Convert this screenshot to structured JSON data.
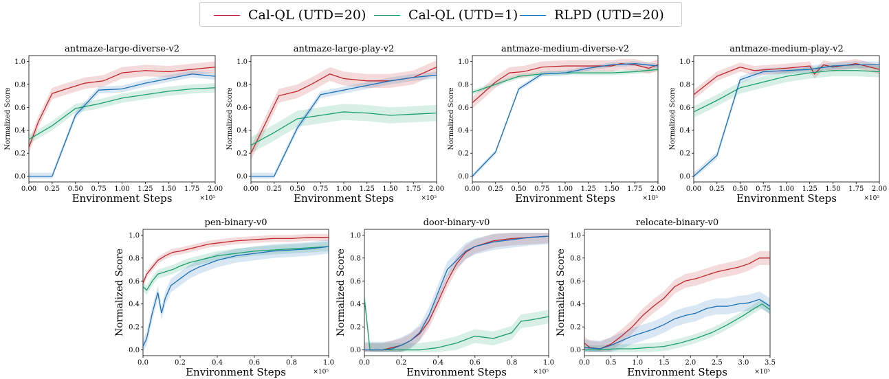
{
  "legend": {
    "items": [
      {
        "label": "Cal-QL (UTD=20)",
        "color": "#c0262c"
      },
      {
        "label": "Cal-QL (UTD=1)",
        "color": "#1a9e6a"
      },
      {
        "label": "RLPD (UTD=20)",
        "color": "#1a6fb5"
      }
    ]
  },
  "chart_data": [
    {
      "type": "line",
      "title": "antmaze-large-diverse-v2",
      "xlabel": "Environment Steps",
      "ylabel": "Normalized Score",
      "x_multiplier": "×10⁵",
      "xlim": [
        0,
        2.0
      ],
      "ylim": [
        0,
        1.0
      ],
      "xticks": [
        "0.00",
        "0.25",
        "0.50",
        "0.75",
        "1.00",
        "1.25",
        "1.50",
        "1.75",
        "2.00"
      ],
      "yticks": [
        "0.0",
        "0.2",
        "0.4",
        "0.6",
        "0.8",
        "1.0"
      ],
      "series": [
        {
          "name": "Cal-QL (UTD=20)",
          "x": [
            0,
            0.1,
            0.25,
            0.4,
            0.6,
            0.8,
            1.0,
            1.25,
            1.5,
            1.75,
            2.0
          ],
          "y": [
            0.25,
            0.47,
            0.72,
            0.76,
            0.81,
            0.83,
            0.9,
            0.92,
            0.91,
            0.93,
            0.95
          ],
          "spread": 0.05
        },
        {
          "name": "Cal-QL (UTD=1)",
          "x": [
            0,
            0.25,
            0.5,
            0.75,
            1.0,
            1.25,
            1.5,
            1.75,
            2.0
          ],
          "y": [
            0.32,
            0.44,
            0.59,
            0.63,
            0.68,
            0.71,
            0.74,
            0.76,
            0.77
          ],
          "spread": 0.04
        },
        {
          "name": "RLPD (UTD=20)",
          "x": [
            0,
            0.25,
            0.5,
            0.75,
            1.0,
            1.25,
            1.5,
            1.75,
            2.0
          ],
          "y": [
            0,
            0,
            0.53,
            0.75,
            0.76,
            0.81,
            0.85,
            0.89,
            0.87
          ],
          "spread": 0.03
        }
      ]
    },
    {
      "type": "line",
      "title": "antmaze-large-play-v2",
      "xlabel": "",
      "ylabel": "",
      "x_multiplier": "×10⁵",
      "xlim": [
        0,
        2.0
      ],
      "ylim": [
        0,
        1.0
      ],
      "xticks": [
        "0.00",
        "0.25",
        "0.50",
        "0.75",
        "1.00",
        "1.25",
        "1.50",
        "1.75",
        "2.00"
      ],
      "yticks": [
        "0.0",
        "0.2",
        "0.4",
        "0.6",
        "0.8",
        "1.0"
      ],
      "series": [
        {
          "name": "Cal-QL (UTD=20)",
          "x": [
            0,
            0.15,
            0.3,
            0.5,
            0.65,
            0.85,
            1.0,
            1.25,
            1.5,
            1.75,
            2.0
          ],
          "y": [
            0.2,
            0.45,
            0.7,
            0.74,
            0.8,
            0.89,
            0.85,
            0.83,
            0.83,
            0.86,
            0.95
          ],
          "spread": 0.06
        },
        {
          "name": "Cal-QL (UTD=1)",
          "x": [
            0,
            0.25,
            0.5,
            0.75,
            1.0,
            1.25,
            1.5,
            1.75,
            2.0
          ],
          "y": [
            0.27,
            0.38,
            0.5,
            0.53,
            0.56,
            0.55,
            0.53,
            0.54,
            0.55
          ],
          "spread": 0.07
        },
        {
          "name": "RLPD (UTD=20)",
          "x": [
            0,
            0.25,
            0.5,
            0.75,
            1.0,
            1.25,
            1.5,
            1.75,
            2.0
          ],
          "y": [
            0,
            0,
            0.42,
            0.71,
            0.75,
            0.79,
            0.83,
            0.86,
            0.88
          ],
          "spread": 0.03
        }
      ]
    },
    {
      "type": "line",
      "title": "antmaze-medium-diverse-v2",
      "xlabel": "",
      "ylabel": "",
      "x_multiplier": "×10⁵",
      "xlim": [
        0,
        2.0
      ],
      "ylim": [
        0,
        1.0
      ],
      "xticks": [
        "0.00",
        "0.25",
        "0.50",
        "0.75",
        "1.00",
        "1.25",
        "1.50",
        "1.75",
        "2.00"
      ],
      "yticks": [
        "0.0",
        "0.2",
        "0.4",
        "0.6",
        "0.8",
        "1.0"
      ],
      "series": [
        {
          "name": "Cal-QL (UTD=20)",
          "x": [
            0,
            0.25,
            0.4,
            0.55,
            0.75,
            1.0,
            1.25,
            1.5,
            1.6,
            1.75,
            1.9,
            2.0
          ],
          "y": [
            0.64,
            0.82,
            0.9,
            0.91,
            0.95,
            0.96,
            0.96,
            0.96,
            0.98,
            0.97,
            0.94,
            0.97
          ],
          "spread": 0.05
        },
        {
          "name": "Cal-QL (UTD=1)",
          "x": [
            0,
            0.25,
            0.5,
            0.75,
            1.0,
            1.25,
            1.5,
            1.75,
            2.0
          ],
          "y": [
            0.73,
            0.8,
            0.87,
            0.89,
            0.9,
            0.9,
            0.9,
            0.91,
            0.93
          ],
          "spread": 0.02
        },
        {
          "name": "RLPD (UTD=20)",
          "x": [
            0,
            0.25,
            0.5,
            0.75,
            1.0,
            1.25,
            1.5,
            1.75,
            2.0
          ],
          "y": [
            0,
            0.21,
            0.76,
            0.89,
            0.9,
            0.94,
            0.97,
            0.98,
            0.96
          ],
          "spread": 0.02
        }
      ]
    },
    {
      "type": "line",
      "title": "antmaze-medium-play-v2",
      "xlabel": "",
      "ylabel": "",
      "x_multiplier": "×10⁵",
      "xlim": [
        0,
        2.0
      ],
      "ylim": [
        0,
        1.0
      ],
      "xticks": [
        "0.00",
        "0.25",
        "0.50",
        "0.75",
        "1.00",
        "1.25",
        "1.50",
        "1.75",
        "2.00"
      ],
      "yticks": [
        "0.0",
        "0.2",
        "0.4",
        "0.6",
        "0.8",
        "1.0"
      ],
      "series": [
        {
          "name": "Cal-QL (UTD=20)",
          "x": [
            0,
            0.25,
            0.5,
            0.65,
            1.0,
            1.25,
            1.3,
            1.4,
            1.5,
            1.75,
            1.85,
            2.0
          ],
          "y": [
            0.71,
            0.87,
            0.95,
            0.92,
            0.94,
            0.96,
            0.89,
            0.97,
            0.95,
            0.98,
            0.96,
            0.93
          ],
          "spread": 0.04
        },
        {
          "name": "Cal-QL (UTD=1)",
          "x": [
            0,
            0.25,
            0.5,
            0.75,
            1.0,
            1.25,
            1.5,
            1.75,
            2.0
          ],
          "y": [
            0.56,
            0.66,
            0.77,
            0.82,
            0.87,
            0.9,
            0.92,
            0.92,
            0.91
          ],
          "spread": 0.05
        },
        {
          "name": "RLPD (UTD=20)",
          "x": [
            0,
            0.25,
            0.5,
            0.75,
            1.0,
            1.25,
            1.5,
            1.75,
            2.0
          ],
          "y": [
            0,
            0.18,
            0.84,
            0.91,
            0.92,
            0.93,
            0.96,
            0.97,
            0.97
          ],
          "spread": 0.03
        }
      ]
    },
    {
      "type": "line",
      "title": "pen-binary-v0",
      "xlabel": "Environment Steps",
      "ylabel": "Normalized Score",
      "x_multiplier": "×10⁵",
      "xlim": [
        0,
        1.0
      ],
      "ylim": [
        0,
        1.0
      ],
      "xticks": [
        "0.0",
        "0.2",
        "0.4",
        "0.6",
        "0.8",
        "1.0"
      ],
      "yticks": [
        "0.0",
        "0.2",
        "0.4",
        "0.6",
        "0.8",
        "1.0"
      ],
      "series": [
        {
          "name": "Cal-QL (UTD=20)",
          "x": [
            0,
            0.02,
            0.05,
            0.08,
            0.12,
            0.16,
            0.2,
            0.25,
            0.3,
            0.35,
            0.4,
            0.5,
            0.6,
            0.7,
            0.8,
            0.9,
            1.0
          ],
          "y": [
            0.58,
            0.66,
            0.72,
            0.78,
            0.82,
            0.85,
            0.86,
            0.88,
            0.9,
            0.92,
            0.93,
            0.95,
            0.96,
            0.97,
            0.97,
            0.98,
            0.98
          ],
          "spread": 0.03
        },
        {
          "name": "Cal-QL (UTD=1)",
          "x": [
            0,
            0.02,
            0.05,
            0.08,
            0.12,
            0.16,
            0.2,
            0.25,
            0.3,
            0.35,
            0.4,
            0.5,
            0.6,
            0.7,
            0.8,
            0.9,
            1.0
          ],
          "y": [
            0.55,
            0.52,
            0.6,
            0.66,
            0.68,
            0.7,
            0.73,
            0.76,
            0.78,
            0.8,
            0.82,
            0.84,
            0.86,
            0.87,
            0.88,
            0.89,
            0.9
          ],
          "spread": 0.04
        },
        {
          "name": "RLPD (UTD=20)",
          "x": [
            0,
            0.02,
            0.05,
            0.08,
            0.1,
            0.12,
            0.15,
            0.2,
            0.25,
            0.3,
            0.35,
            0.4,
            0.5,
            0.6,
            0.7,
            0.8,
            0.9,
            1.0
          ],
          "y": [
            0.03,
            0.1,
            0.32,
            0.5,
            0.32,
            0.45,
            0.56,
            0.62,
            0.68,
            0.72,
            0.75,
            0.78,
            0.82,
            0.84,
            0.86,
            0.87,
            0.88,
            0.9
          ],
          "spread": 0.06
        }
      ]
    },
    {
      "type": "line",
      "title": "door-binary-v0",
      "xlabel": "Environment Steps",
      "ylabel": "Normalized Score",
      "x_multiplier": "×10⁵",
      "xlim": [
        0,
        1.0
      ],
      "ylim": [
        0,
        1.0
      ],
      "xticks": [
        "0.0",
        "0.2",
        "0.4",
        "0.6",
        "0.8",
        "1.0"
      ],
      "yticks": [
        "0.0",
        "0.2",
        "0.4",
        "0.6",
        "0.8",
        "1.0"
      ],
      "series": [
        {
          "name": "Cal-QL (UTD=20)",
          "x": [
            0,
            0.1,
            0.15,
            0.2,
            0.25,
            0.3,
            0.35,
            0.4,
            0.45,
            0.5,
            0.55,
            0.6,
            0.7,
            0.8,
            0.9,
            1.0
          ],
          "y": [
            0,
            0,
            0.02,
            0.04,
            0.08,
            0.14,
            0.25,
            0.42,
            0.6,
            0.75,
            0.85,
            0.9,
            0.95,
            0.97,
            0.98,
            0.99
          ],
          "spread": 0.06
        },
        {
          "name": "Cal-QL (UTD=1)",
          "x": [
            0,
            0.03,
            0.05,
            0.1,
            0.2,
            0.3,
            0.4,
            0.5,
            0.6,
            0.7,
            0.8,
            0.85,
            0.9,
            1.0
          ],
          "y": [
            0.45,
            0,
            0,
            0,
            0,
            0,
            0.02,
            0.06,
            0.12,
            0.1,
            0.15,
            0.25,
            0.26,
            0.29
          ],
          "spread": 0.06
        },
        {
          "name": "RLPD (UTD=20)",
          "x": [
            0,
            0.1,
            0.15,
            0.2,
            0.25,
            0.3,
            0.35,
            0.4,
            0.45,
            0.5,
            0.55,
            0.6,
            0.7,
            0.8,
            0.9,
            1.0
          ],
          "y": [
            0,
            0,
            0.01,
            0.04,
            0.08,
            0.15,
            0.3,
            0.5,
            0.7,
            0.78,
            0.86,
            0.9,
            0.94,
            0.96,
            0.98,
            0.99
          ],
          "spread": 0.07
        }
      ]
    },
    {
      "type": "line",
      "title": "relocate-binary-v0",
      "xlabel": "Environment Steps",
      "ylabel": "Normalized Score",
      "x_multiplier": "×10⁵",
      "xlim": [
        0,
        3.5
      ],
      "ylim": [
        0,
        1.0
      ],
      "xticks": [
        "0.0",
        "0.5",
        "1.0",
        "1.5",
        "2.0",
        "2.5",
        "3.0",
        "3.5"
      ],
      "yticks": [
        "0.0",
        "0.2",
        "0.4",
        "0.6",
        "0.8",
        "1.0"
      ],
      "series": [
        {
          "name": "Cal-QL (UTD=20)",
          "x": [
            0,
            0.1,
            0.3,
            0.5,
            0.7,
            0.9,
            1.1,
            1.3,
            1.5,
            1.7,
            1.9,
            2.1,
            2.3,
            2.5,
            2.7,
            2.9,
            3.1,
            3.3,
            3.5
          ],
          "y": [
            0.06,
            0.02,
            0.01,
            0.05,
            0.12,
            0.2,
            0.3,
            0.38,
            0.45,
            0.55,
            0.6,
            0.62,
            0.65,
            0.68,
            0.7,
            0.72,
            0.75,
            0.8,
            0.8
          ],
          "spread": 0.06
        },
        {
          "name": "Cal-QL (UTD=1)",
          "x": [
            0,
            0.3,
            0.6,
            0.9,
            1.2,
            1.5,
            1.8,
            2.1,
            2.4,
            2.7,
            3.0,
            3.2,
            3.35,
            3.5
          ],
          "y": [
            0,
            0,
            0.01,
            0.01,
            0.02,
            0.03,
            0.06,
            0.1,
            0.15,
            0.22,
            0.3,
            0.36,
            0.4,
            0.35
          ],
          "spread": 0.04
        },
        {
          "name": "RLPD (UTD=20)",
          "x": [
            0,
            0.3,
            0.5,
            0.7,
            0.9,
            1.1,
            1.3,
            1.5,
            1.7,
            1.9,
            2.1,
            2.3,
            2.5,
            2.7,
            2.9,
            3.1,
            3.3,
            3.5
          ],
          "y": [
            0.02,
            0.01,
            0.04,
            0.08,
            0.12,
            0.15,
            0.18,
            0.22,
            0.27,
            0.3,
            0.32,
            0.36,
            0.38,
            0.38,
            0.4,
            0.41,
            0.44,
            0.38
          ],
          "spread": 0.07
        }
      ]
    }
  ]
}
